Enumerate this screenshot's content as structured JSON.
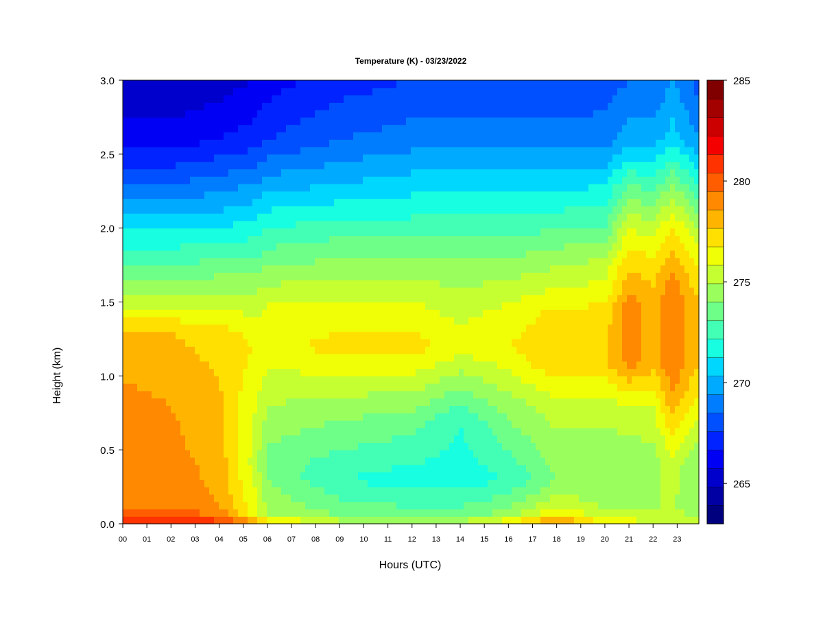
{
  "chart_data": {
    "type": "heatmap",
    "title": "Temperature (K) - 03/23/2022",
    "xlabel": "Hours (UTC)",
    "ylabel": "Height (km)",
    "x_ticks": [
      "00",
      "01",
      "02",
      "03",
      "04",
      "05",
      "06",
      "07",
      "08",
      "09",
      "10",
      "11",
      "12",
      "13",
      "14",
      "15",
      "16",
      "17",
      "18",
      "19",
      "20",
      "21",
      "22",
      "23"
    ],
    "y_ticks": [
      "0.0",
      "0.5",
      "1.0",
      "1.5",
      "2.0",
      "2.5",
      "3.0"
    ],
    "xlim": [
      0,
      23.9
    ],
    "ylim": [
      0,
      3.0
    ],
    "colorbar": {
      "min": 263,
      "max": 285,
      "step": 1,
      "tick_values": [
        265,
        270,
        275,
        280,
        285
      ],
      "tick_labels": [
        "265",
        "270",
        "275",
        "280",
        "285"
      ],
      "colors": [
        "#00007F",
        "#0000A3",
        "#0000CC",
        "#0000F5",
        "#0023FF",
        "#0050FF",
        "#007DFF",
        "#00ABFF",
        "#00D7FF",
        "#17FFE0",
        "#42FFB5",
        "#6EFF89",
        "#9AFF5D",
        "#C5FF32",
        "#F1FF06",
        "#FFE000",
        "#FFB500",
        "#FF8900",
        "#FF5D00",
        "#FF3200",
        "#F50000",
        "#CC0000",
        "#A30000",
        "#800000"
      ]
    },
    "profiles": [
      {
        "hour": 0,
        "temps": [
          [
            0,
            283.5
          ],
          [
            0.1,
            281
          ],
          [
            0.3,
            280.5
          ],
          [
            0.8,
            280.5
          ],
          [
            1.3,
            279
          ],
          [
            1.5,
            276.5
          ],
          [
            1.8,
            273.5
          ],
          [
            2.0,
            272
          ],
          [
            2.3,
            269
          ],
          [
            2.6,
            266.5
          ],
          [
            3.0,
            265
          ]
        ]
      },
      {
        "hour": 2,
        "temps": [
          [
            0,
            283.5
          ],
          [
            0.1,
            281
          ],
          [
            0.3,
            280.5
          ],
          [
            0.8,
            280
          ],
          [
            1.3,
            279
          ],
          [
            1.5,
            276.5
          ],
          [
            1.8,
            273.5
          ],
          [
            2.0,
            272
          ],
          [
            2.3,
            269
          ],
          [
            2.6,
            266.5
          ],
          [
            3.0,
            265
          ]
        ]
      },
      {
        "hour": 4,
        "temps": [
          [
            0,
            282.5
          ],
          [
            0.1,
            280
          ],
          [
            0.5,
            279.5
          ],
          [
            1.0,
            279
          ],
          [
            1.3,
            278.5
          ],
          [
            1.5,
            276.5
          ],
          [
            1.8,
            274
          ],
          [
            2.0,
            272
          ],
          [
            2.3,
            269.5
          ],
          [
            2.6,
            267
          ],
          [
            3.0,
            265.5
          ]
        ]
      },
      {
        "hour": 5.5,
        "temps": [
          [
            0,
            281
          ],
          [
            0.06,
            277.5
          ],
          [
            0.4,
            276.5
          ],
          [
            0.8,
            277
          ],
          [
            1.2,
            278
          ],
          [
            1.5,
            276.5
          ],
          [
            1.8,
            274
          ],
          [
            2.0,
            272.5
          ],
          [
            2.3,
            270
          ],
          [
            2.6,
            267.5
          ],
          [
            3.0,
            266
          ]
        ]
      },
      {
        "hour": 6,
        "temps": [
          [
            0,
            279
          ],
          [
            0.06,
            276
          ],
          [
            0.4,
            274.5
          ],
          [
            0.8,
            276
          ],
          [
            1.2,
            277.5
          ],
          [
            1.5,
            277
          ],
          [
            1.8,
            274.5
          ],
          [
            2.0,
            273
          ],
          [
            2.3,
            270.5
          ],
          [
            2.6,
            268
          ],
          [
            3.0,
            266.5
          ]
        ]
      },
      {
        "hour": 9,
        "temps": [
          [
            0,
            277
          ],
          [
            0.05,
            275
          ],
          [
            0.3,
            273
          ],
          [
            0.8,
            275.5
          ],
          [
            1.2,
            278.5
          ],
          [
            1.5,
            277
          ],
          [
            1.8,
            275
          ],
          [
            2.0,
            273.5
          ],
          [
            2.3,
            271
          ],
          [
            2.6,
            269
          ],
          [
            3.0,
            267.5
          ]
        ]
      },
      {
        "hour": 12,
        "temps": [
          [
            0,
            277
          ],
          [
            0.05,
            274.5
          ],
          [
            0.3,
            272.5
          ],
          [
            0.7,
            274.5
          ],
          [
            1.2,
            278.5
          ],
          [
            1.5,
            277
          ],
          [
            1.8,
            275
          ],
          [
            2.0,
            273.5
          ],
          [
            2.3,
            271.5
          ],
          [
            2.6,
            269.5
          ],
          [
            3.0,
            268
          ]
        ]
      },
      {
        "hour": 14,
        "temps": [
          [
            0,
            277
          ],
          [
            0.05,
            274.5
          ],
          [
            0.3,
            272.5
          ],
          [
            0.7,
            273
          ],
          [
            1.2,
            277.5
          ],
          [
            1.5,
            276.5
          ],
          [
            1.8,
            275
          ],
          [
            2.0,
            273.5
          ],
          [
            2.3,
            271.5
          ],
          [
            2.6,
            269.5
          ],
          [
            3.0,
            268
          ]
        ]
      },
      {
        "hour": 16,
        "temps": [
          [
            0,
            278.5
          ],
          [
            0.06,
            275.5
          ],
          [
            0.3,
            273
          ],
          [
            0.8,
            275.5
          ],
          [
            1.2,
            278
          ],
          [
            1.5,
            277
          ],
          [
            1.8,
            275
          ],
          [
            2.0,
            273.5
          ],
          [
            2.3,
            271.5
          ],
          [
            2.6,
            269.5
          ],
          [
            3.0,
            268
          ]
        ]
      },
      {
        "hour": 18,
        "temps": [
          [
            0,
            281
          ],
          [
            0.1,
            277
          ],
          [
            0.3,
            275
          ],
          [
            0.8,
            276.5
          ],
          [
            1.1,
            279
          ],
          [
            1.4,
            278.5
          ],
          [
            1.8,
            275.5
          ],
          [
            2.0,
            274
          ],
          [
            2.3,
            271.5
          ],
          [
            2.6,
            269.5
          ],
          [
            3.0,
            268
          ]
        ]
      },
      {
        "hour": 20,
        "temps": [
          [
            0,
            278
          ],
          [
            0.08,
            276
          ],
          [
            0.4,
            275
          ],
          [
            0.8,
            276.5
          ],
          [
            1.1,
            279
          ],
          [
            1.4,
            278.5
          ],
          [
            1.8,
            276
          ],
          [
            2.0,
            274
          ],
          [
            2.3,
            272
          ],
          [
            2.6,
            269.5
          ],
          [
            3.0,
            268.5
          ]
        ]
      },
      {
        "hour": 21,
        "temps": [
          [
            0,
            277.5
          ],
          [
            0.1,
            276
          ],
          [
            0.4,
            275
          ],
          [
            0.8,
            277
          ],
          [
            1.1,
            280.5
          ],
          [
            1.5,
            280.5
          ],
          [
            1.8,
            278.5
          ],
          [
            2.0,
            277
          ],
          [
            2.3,
            274
          ],
          [
            2.6,
            270.5
          ],
          [
            3.0,
            269
          ]
        ]
      },
      {
        "hour": 22,
        "temps": [
          [
            0,
            277
          ],
          [
            0.1,
            276
          ],
          [
            0.4,
            275.5
          ],
          [
            0.8,
            277
          ],
          [
            1.1,
            279.5
          ],
          [
            1.5,
            279.5
          ],
          [
            1.8,
            278
          ],
          [
            2.0,
            276.5
          ],
          [
            2.3,
            273.5
          ],
          [
            2.6,
            270.5
          ],
          [
            3.0,
            269
          ]
        ]
      },
      {
        "hour": 22.8,
        "temps": [
          [
            0,
            277
          ],
          [
            0.1,
            276
          ],
          [
            0.4,
            276.5
          ],
          [
            0.8,
            279.5
          ],
          [
            1.1,
            281
          ],
          [
            1.5,
            281
          ],
          [
            1.8,
            279.5
          ],
          [
            2.0,
            278
          ],
          [
            2.3,
            275
          ],
          [
            2.6,
            271.5
          ],
          [
            3.0,
            270
          ]
        ]
      },
      {
        "hour": 23.9,
        "temps": [
          [
            0,
            276.5
          ],
          [
            0.1,
            275.5
          ],
          [
            0.4,
            275
          ],
          [
            0.8,
            277.5
          ],
          [
            1.1,
            279
          ],
          [
            1.5,
            279
          ],
          [
            1.8,
            277.5
          ],
          [
            2.0,
            276
          ],
          [
            2.3,
            273
          ],
          [
            2.6,
            270
          ],
          [
            3.0,
            268.5
          ]
        ]
      }
    ]
  }
}
